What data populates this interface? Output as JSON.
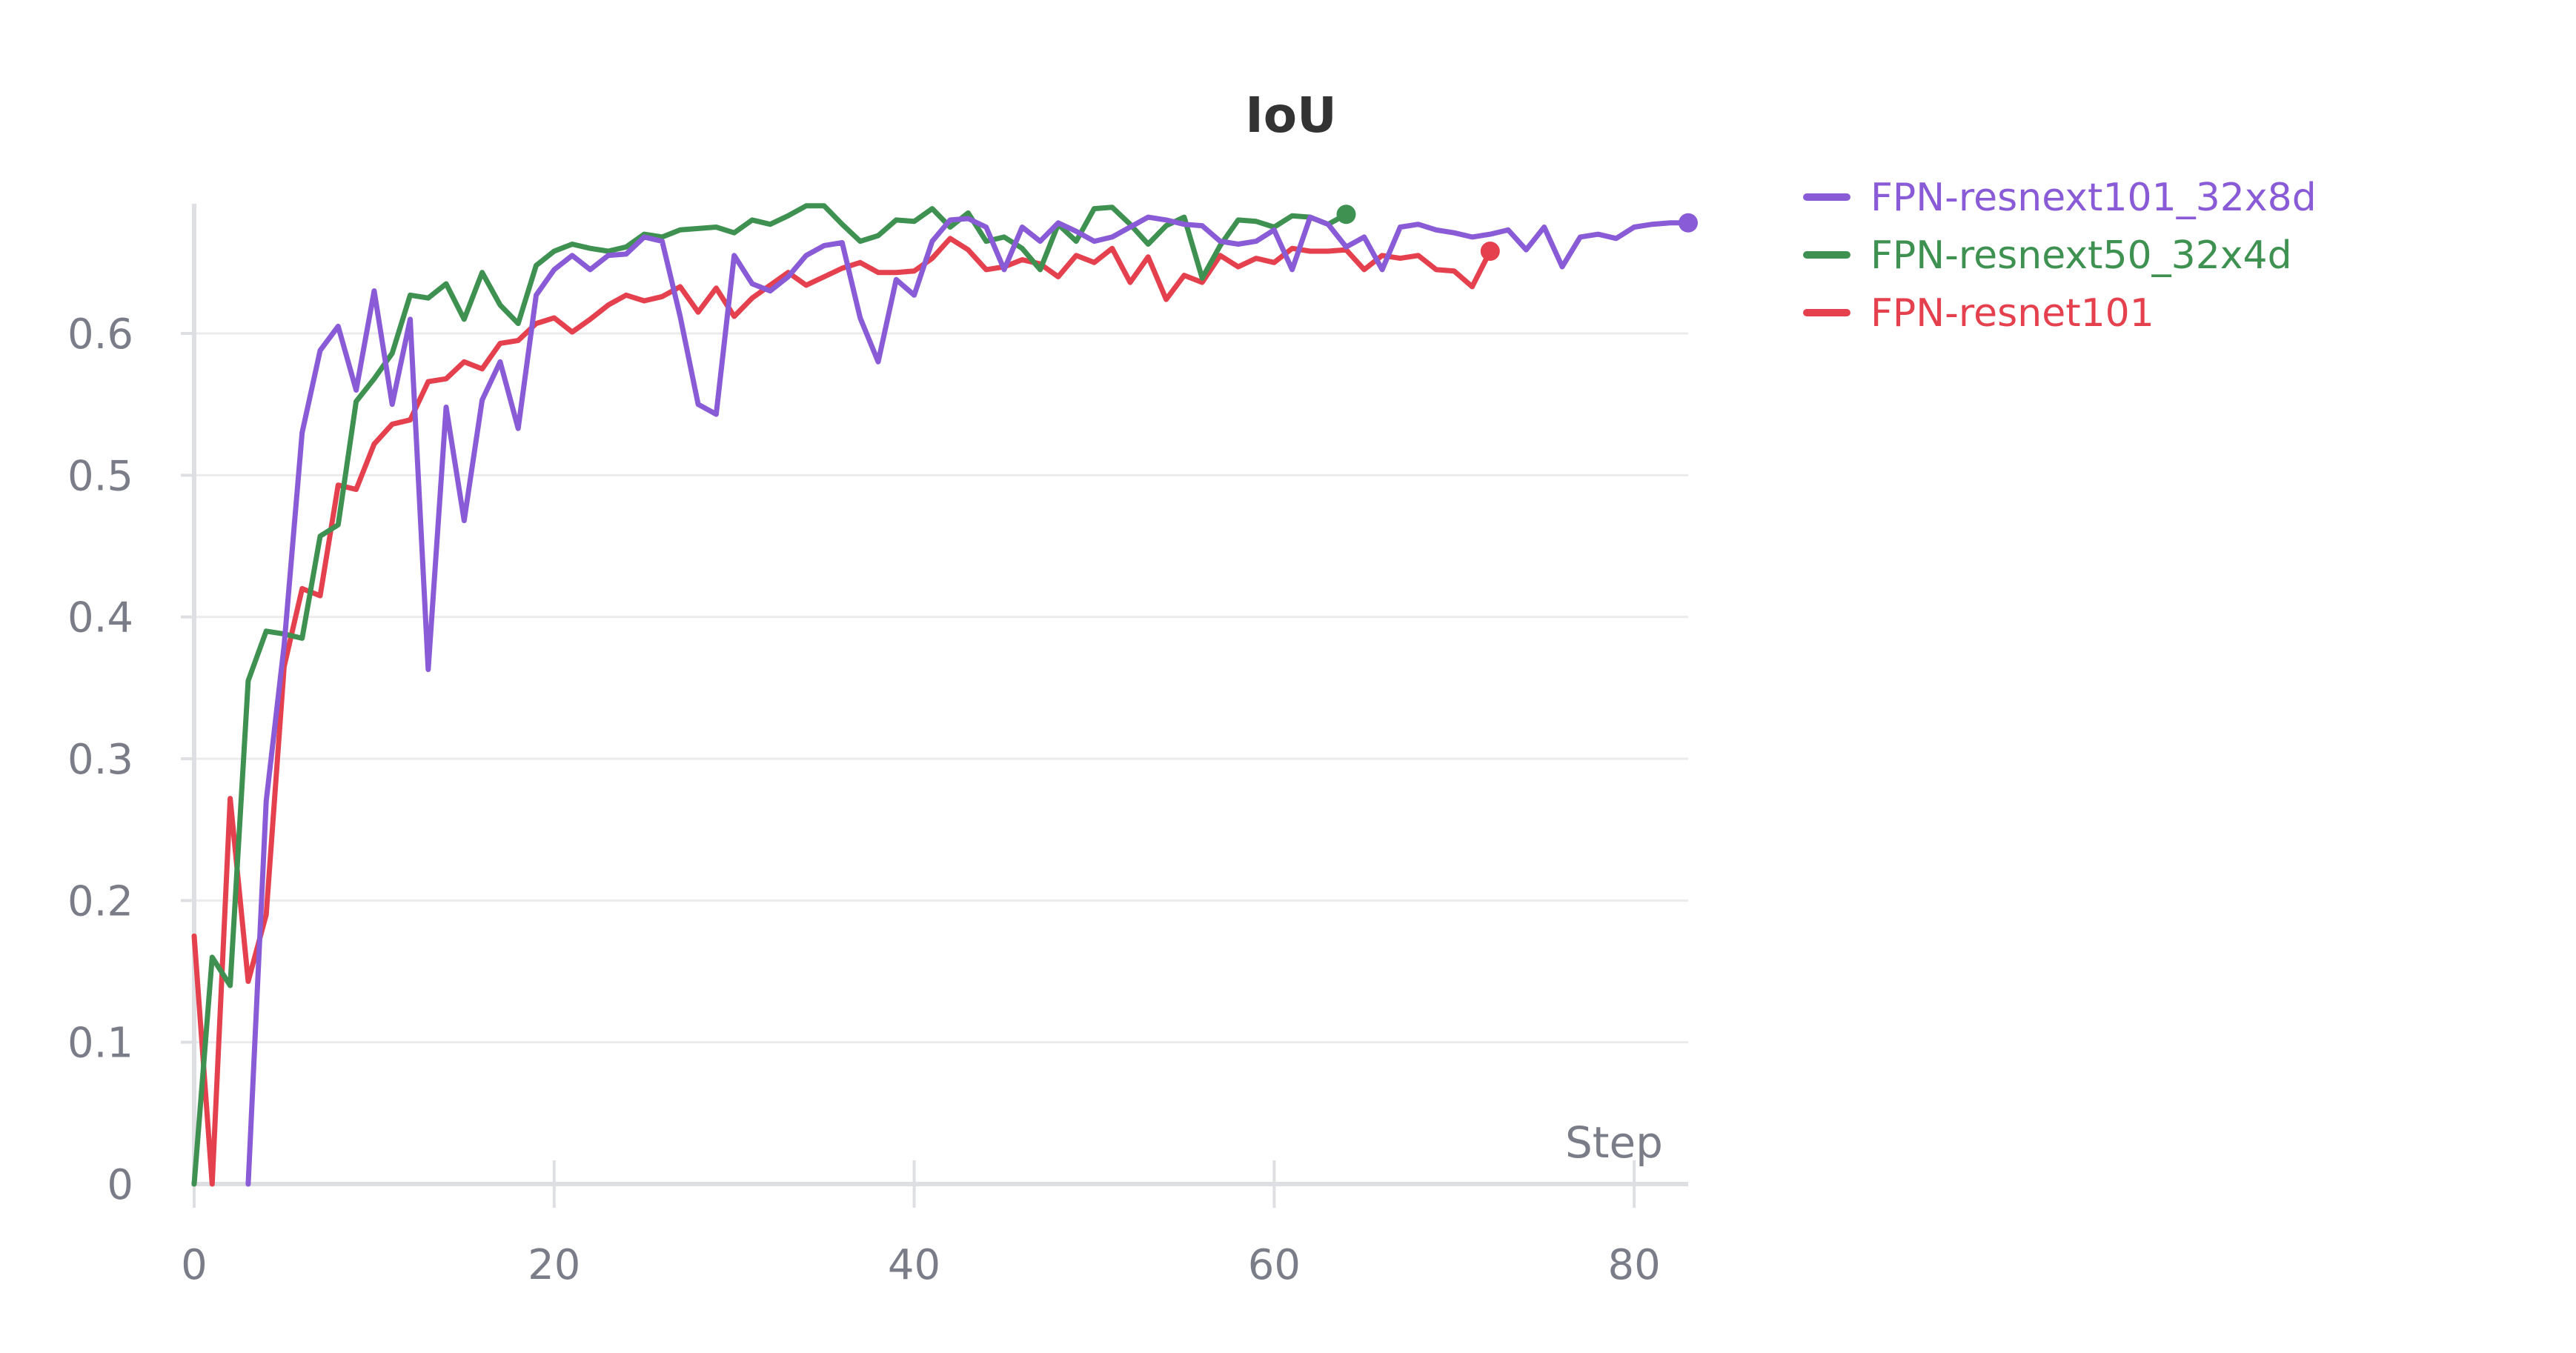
{
  "chart_data": {
    "type": "line",
    "title": "IoU",
    "xlabel": "Step",
    "ylabel": "",
    "xlim": [
      0,
      83
    ],
    "ylim": [
      0,
      0.69
    ],
    "x_ticks": [
      0,
      20,
      40,
      60,
      80
    ],
    "x_tick_labels": [
      "0",
      "20",
      "40",
      "60",
      "80"
    ],
    "y_ticks": [
      0,
      0.1,
      0.2,
      0.3,
      0.4,
      0.5,
      0.6
    ],
    "y_tick_labels": [
      "0",
      "0.1",
      "0.2",
      "0.3",
      "0.4",
      "0.5",
      "0.6"
    ],
    "grid": true,
    "legend_position": "top-right",
    "series": [
      {
        "name": "FPN-resnext101_32x8d",
        "color": "#8a5bd6",
        "x": [
          3,
          4,
          5,
          6,
          7,
          8,
          9,
          10,
          11,
          12,
          13,
          14,
          15,
          16,
          17,
          18,
          19,
          20,
          21,
          22,
          23,
          24,
          25,
          26,
          27,
          28,
          29,
          30,
          31,
          32,
          33,
          34,
          35,
          36,
          37,
          38,
          39,
          40,
          41,
          42,
          43,
          44,
          45,
          46,
          47,
          48,
          49,
          50,
          51,
          52,
          53,
          54,
          55,
          56,
          57,
          58,
          59,
          60,
          61,
          62,
          63,
          64,
          65,
          66,
          67,
          68,
          69,
          70,
          71,
          72,
          73,
          74,
          75,
          76,
          77,
          78,
          79,
          80,
          81,
          82,
          83
        ],
        "values": [
          0.0,
          0.27,
          0.38,
          0.53,
          0.588,
          0.605,
          0.56,
          0.63,
          0.55,
          0.61,
          0.363,
          0.548,
          0.468,
          0.553,
          0.58,
          0.533,
          0.627,
          0.645,
          0.655,
          0.645,
          0.655,
          0.656,
          0.668,
          0.665,
          0.612,
          0.55,
          0.543,
          0.655,
          0.635,
          0.63,
          0.64,
          0.655,
          0.662,
          0.664,
          0.611,
          0.58,
          0.638,
          0.627,
          0.665,
          0.68,
          0.681,
          0.675,
          0.645,
          0.675,
          0.665,
          0.678,
          0.672,
          0.665,
          0.668,
          0.675,
          0.682,
          0.68,
          0.677,
          0.676,
          0.665,
          0.663,
          0.665,
          0.673,
          0.645,
          0.682,
          0.677,
          0.661,
          0.668,
          0.645,
          0.675,
          0.677,
          0.673,
          0.671,
          0.668,
          0.67,
          0.673,
          0.659,
          0.675,
          0.647,
          0.668,
          0.67,
          0.667,
          0.675,
          0.677,
          0.678,
          0.678
        ]
      },
      {
        "name": "FPN-resnext50_32x4d",
        "color": "#3e9151",
        "x": [
          0,
          1,
          2,
          3,
          4,
          5,
          6,
          7,
          8,
          9,
          10,
          11,
          12,
          13,
          14,
          15,
          16,
          17,
          18,
          19,
          20,
          21,
          22,
          23,
          24,
          25,
          26,
          27,
          28,
          29,
          30,
          31,
          32,
          33,
          34,
          35,
          36,
          37,
          38,
          39,
          40,
          41,
          42,
          43,
          44,
          45,
          46,
          47,
          48,
          49,
          50,
          51,
          52,
          53,
          54,
          55,
          56,
          57,
          58,
          59,
          60,
          61,
          62,
          63,
          64
        ],
        "values": [
          0.0,
          0.16,
          0.14,
          0.355,
          0.39,
          0.388,
          0.385,
          0.457,
          0.465,
          0.552,
          0.568,
          0.586,
          0.627,
          0.625,
          0.635,
          0.61,
          0.643,
          0.62,
          0.607,
          0.648,
          0.658,
          0.663,
          0.66,
          0.658,
          0.661,
          0.67,
          0.668,
          0.673,
          0.674,
          0.675,
          0.671,
          0.68,
          0.677,
          0.683,
          0.69,
          0.69,
          0.677,
          0.665,
          0.669,
          0.68,
          0.679,
          0.688,
          0.675,
          0.685,
          0.665,
          0.668,
          0.66,
          0.645,
          0.677,
          0.665,
          0.688,
          0.689,
          0.677,
          0.663,
          0.676,
          0.682,
          0.639,
          0.662,
          0.68,
          0.679,
          0.675,
          0.683,
          0.682,
          0.677,
          0.684
        ]
      },
      {
        "name": "FPN-resnet101",
        "color": "#e5404e",
        "x": [
          0,
          1,
          2,
          3,
          4,
          5,
          6,
          7,
          8,
          9,
          10,
          11,
          12,
          13,
          14,
          15,
          16,
          17,
          18,
          19,
          20,
          21,
          22,
          23,
          24,
          25,
          26,
          27,
          28,
          29,
          30,
          31,
          32,
          33,
          34,
          35,
          36,
          37,
          38,
          39,
          40,
          41,
          42,
          43,
          44,
          45,
          46,
          47,
          48,
          49,
          50,
          51,
          52,
          53,
          54,
          55,
          56,
          57,
          58,
          59,
          60,
          61,
          62,
          63,
          64,
          65,
          66,
          67,
          68,
          69,
          70,
          71,
          72
        ],
        "values": [
          0.175,
          0.0,
          0.272,
          0.143,
          0.19,
          0.365,
          0.42,
          0.415,
          0.493,
          0.49,
          0.522,
          0.536,
          0.539,
          0.566,
          0.568,
          0.58,
          0.575,
          0.593,
          0.595,
          0.607,
          0.611,
          0.601,
          0.61,
          0.62,
          0.627,
          0.623,
          0.626,
          0.633,
          0.615,
          0.632,
          0.612,
          0.625,
          0.634,
          0.643,
          0.634,
          0.64,
          0.646,
          0.65,
          0.643,
          0.643,
          0.644,
          0.653,
          0.667,
          0.659,
          0.645,
          0.647,
          0.652,
          0.649,
          0.64,
          0.655,
          0.65,
          0.66,
          0.636,
          0.654,
          0.624,
          0.641,
          0.636,
          0.655,
          0.647,
          0.653,
          0.65,
          0.66,
          0.658,
          0.658,
          0.659,
          0.645,
          0.655,
          0.653,
          0.655,
          0.645,
          0.644,
          0.633,
          0.658
        ]
      }
    ]
  }
}
